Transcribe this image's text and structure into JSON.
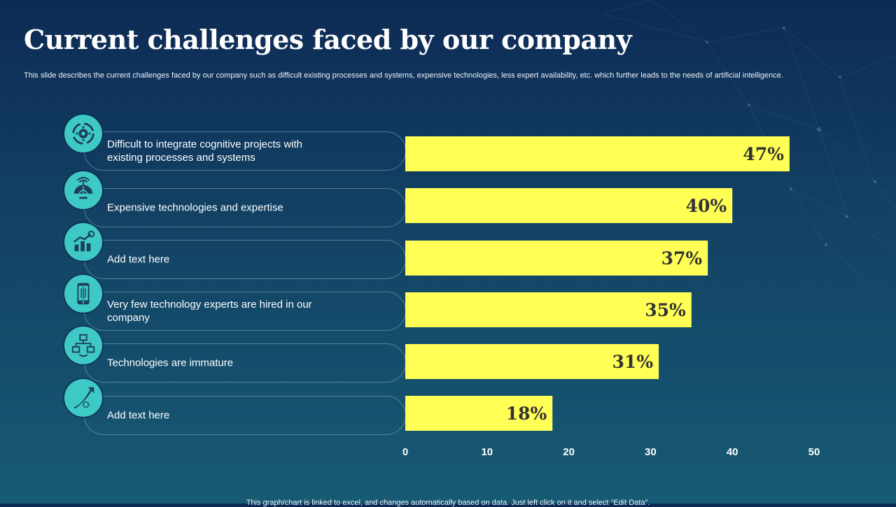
{
  "page": {
    "title": "Current challenges faced by our company",
    "subtitle": "This slide describes the current challenges faced by our company such as difficult existing processes and systems, expensive technologies, less expert availability, etc. which further leads to the needs of artificial intelligence.",
    "footer": "This graph/chart is linked to excel,  and changes automatically based on data. Just left click on it and select “Edit Data”."
  },
  "rows": [
    {
      "label": "Difficult to integrate cognitive projects with existing processes and systems",
      "icon": "gear-cycle-icon"
    },
    {
      "label": "Expensive technologies and expertise",
      "icon": "globe-antenna-icon"
    },
    {
      "label": "Add text here",
      "icon": "growth-chart-icon"
    },
    {
      "label": "Very few technology experts are hired in our company",
      "icon": "mobile-circuit-icon"
    },
    {
      "label": "Technologies are immature",
      "icon": "network-nodes-icon"
    },
    {
      "label": "Add text here",
      "icon": "rocket-gear-icon"
    }
  ],
  "colors": {
    "bar": "#ffff55",
    "badge": "#3ec9c7",
    "value_text": "#333333"
  },
  "chart_data": {
    "type": "bar",
    "orientation": "horizontal",
    "categories": [
      "Difficult to integrate cognitive projects with existing processes and systems",
      "Expensive technologies and expertise",
      "Add text here",
      "Very few technology experts are hired in our company",
      "Technologies are immature",
      "Add text here"
    ],
    "values": [
      47,
      40,
      37,
      35,
      31,
      18
    ],
    "data_labels": [
      "47%",
      "40%",
      "37%",
      "35%",
      "31%",
      "18%"
    ],
    "xlim": [
      0,
      50
    ],
    "xticks": [
      0,
      10,
      20,
      30,
      40,
      50
    ],
    "title": "",
    "xlabel": "",
    "ylabel": "",
    "grid": false
  }
}
